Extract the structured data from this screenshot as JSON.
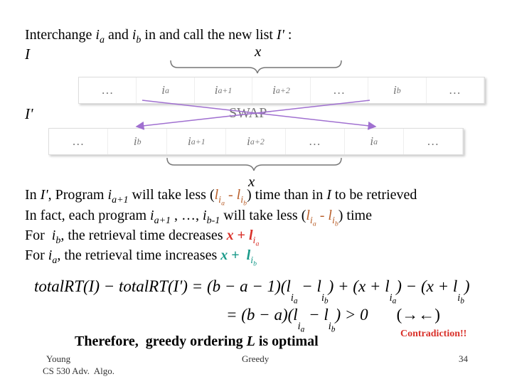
{
  "intro": {
    "line": [
      "Interchange ",
      "i",
      "a",
      " and ",
      "i",
      "b",
      " in and call the new list ",
      "I'",
      " :"
    ],
    "list_i": "I",
    "list_i_prime": "I'",
    "x_top": "x",
    "x_bottom": "x",
    "swap": "SWAP"
  },
  "rows": [
    [
      [
        "…"
      ],
      [
        "i",
        "a"
      ],
      [
        "i",
        "a+1"
      ],
      [
        "i",
        "a+2"
      ],
      [
        "…"
      ],
      [
        "i",
        "b"
      ],
      [
        "…"
      ]
    ],
    [
      [
        "…"
      ],
      [
        "i",
        "b"
      ],
      [
        "i",
        "a+1"
      ],
      [
        "i",
        "a+2"
      ],
      [
        "…"
      ],
      [
        "i",
        "a"
      ],
      [
        "…"
      ]
    ]
  ],
  "paragraph": [
    [
      "In ",
      "I'",
      ", Program ",
      "i",
      "a+1",
      " will take less (",
      "l",
      "i",
      "a",
      " - ",
      "l",
      "i",
      "b",
      ") time than in ",
      "I",
      " to be retrieved"
    ],
    [
      "In fact, each program ",
      "i",
      "a+1",
      " , …, ",
      "i",
      "b-1",
      " will take less (",
      "l",
      "i",
      "a",
      " - ",
      "l",
      "i",
      "b",
      ") time"
    ],
    [
      "For  ",
      "i",
      "b",
      ", the retrieval time decreases ",
      "x",
      " + ",
      "l",
      "i",
      "a"
    ],
    [
      "For ",
      "i",
      "a",
      ", the retrieval time increases ",
      "x",
      " +  ",
      "l",
      "i",
      "b"
    ]
  ],
  "equation": {
    "line1": [
      "totalRT(I) − totalRT(I') = (b − a − 1)(l",
      "i",
      "a",
      " − l",
      "i",
      "b",
      ") + (x + l",
      "i",
      "a",
      ") − (x + l",
      "i",
      "b",
      ")"
    ],
    "line2": [
      "= (b − a)(l",
      "i",
      "a",
      " − l",
      "i",
      "b",
      ") > 0",
      "(→←)"
    ]
  },
  "conclusion": [
    "Therefore,  greedy ordering ",
    "L",
    " is optimal"
  ],
  "contradiction": "Contradiction!!",
  "footer": {
    "author": "Young",
    "course": "CS 530 Adv.  Algo.",
    "topic": "Greedy",
    "page": "34"
  }
}
